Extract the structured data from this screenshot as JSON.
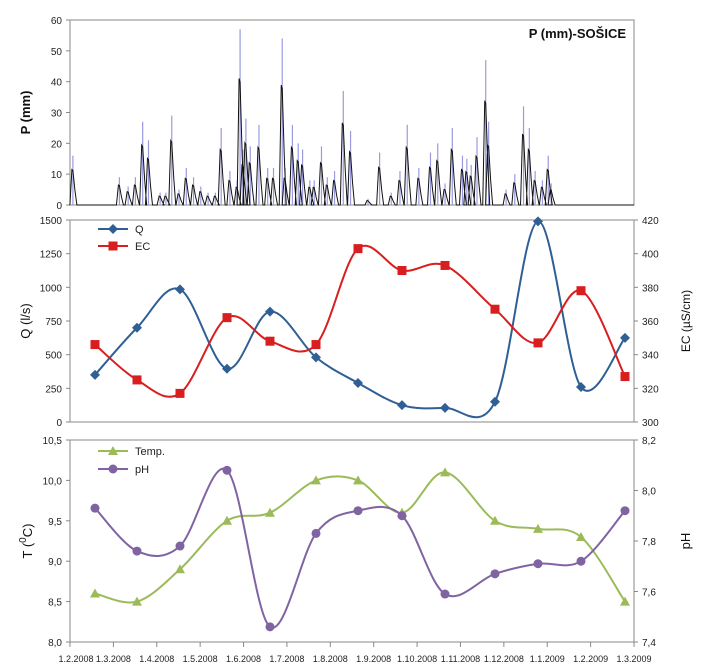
{
  "chart_data": [
    {
      "type": "bar",
      "panel": "precipitation",
      "title": "P (mm)-SOŠICE",
      "ylabel": "P (mm)",
      "ylim": [
        0,
        60
      ],
      "yticks": [
        "0",
        "10",
        "20",
        "30",
        "40",
        "50",
        "60"
      ],
      "grid": false,
      "colors": {
        "bars": "#9a9ae0",
        "line": "#111111"
      },
      "events": [
        [
          2,
          16
        ],
        [
          34,
          9
        ],
        [
          40,
          6
        ],
        [
          45,
          9
        ],
        [
          50,
          27
        ],
        [
          54,
          21
        ],
        [
          62,
          4
        ],
        [
          66,
          4
        ],
        [
          70,
          29
        ],
        [
          75,
          5
        ],
        [
          80,
          12
        ],
        [
          85,
          9
        ],
        [
          90,
          6
        ],
        [
          95,
          4
        ],
        [
          100,
          4
        ],
        [
          104,
          25
        ],
        [
          110,
          11
        ],
        [
          115,
          8
        ],
        [
          117,
          57
        ],
        [
          119,
          18
        ],
        [
          121,
          28
        ],
        [
          124,
          19
        ],
        [
          130,
          26
        ],
        [
          136,
          12
        ],
        [
          140,
          12
        ],
        [
          146,
          54
        ],
        [
          148,
          12
        ],
        [
          153,
          26
        ],
        [
          157,
          20
        ],
        [
          160,
          18
        ],
        [
          165,
          8
        ],
        [
          168,
          8
        ],
        [
          173,
          19
        ],
        [
          177,
          9
        ],
        [
          182,
          11
        ],
        [
          188,
          37
        ],
        [
          193,
          24
        ],
        [
          205,
          2
        ],
        [
          213,
          17
        ],
        [
          221,
          4
        ],
        [
          227,
          11
        ],
        [
          232,
          26
        ],
        [
          240,
          12
        ],
        [
          248,
          17
        ],
        [
          253,
          20
        ],
        [
          258,
          7
        ],
        [
          263,
          25
        ],
        [
          270,
          16
        ],
        [
          273,
          15
        ],
        [
          276,
          13
        ],
        [
          280,
          22
        ],
        [
          286,
          47
        ],
        [
          288,
          27
        ],
        [
          300,
          5
        ],
        [
          306,
          10
        ],
        [
          312,
          32
        ],
        [
          316,
          25
        ],
        [
          320,
          11
        ],
        [
          325,
          8
        ],
        [
          329,
          16
        ],
        [
          331,
          7
        ]
      ]
    },
    {
      "type": "line",
      "panel": "discharge-conductivity",
      "x_dates": [
        "7.2.2008",
        "7.3.2008",
        "7.4.2008",
        "6.5.2008",
        "5.6.2008",
        "5.7.2008",
        "4.8.2008",
        "3.9.2008",
        "3.10.2008",
        "1.11.2008",
        "1.12.2008",
        "31.12.2008",
        "24.1.2009",
        "25.2.2009"
      ],
      "series": [
        {
          "name": "Q",
          "axis": "left",
          "color": "#2f5f94",
          "marker": "diamond",
          "values": [
            350,
            700,
            985,
            395,
            820,
            480,
            290,
            125,
            105,
            150,
            1490,
            260,
            625
          ]
        },
        {
          "name": "EC",
          "axis": "right",
          "color": "#d81e1e",
          "marker": "square",
          "values": [
            346,
            325,
            317,
            362,
            348,
            346,
            403,
            390,
            393,
            367,
            347,
            378,
            327
          ]
        }
      ],
      "x_index_q": [
        0,
        1,
        2,
        3,
        4,
        5,
        6,
        7,
        8,
        9,
        10,
        11,
        13
      ],
      "x_index_ec": [
        0,
        1,
        2,
        3,
        4,
        5,
        6,
        7,
        8,
        9,
        10,
        11,
        13
      ],
      "ylabel_left": "Q (l/s)",
      "ylabel_right": "EC (µS/cm)",
      "ylim_left": [
        0,
        1500
      ],
      "ylim_right": [
        300,
        420
      ],
      "yticks_left": [
        "0",
        "250",
        "500",
        "750",
        "1000",
        "1250",
        "1500"
      ],
      "yticks_right": [
        "300",
        "320",
        "340",
        "360",
        "380",
        "400",
        "420"
      ],
      "legend": "top-left"
    },
    {
      "type": "line",
      "panel": "temperature-ph",
      "series": [
        {
          "name": "Temp.",
          "axis": "left",
          "color": "#9bbb59",
          "marker": "triangle",
          "values": [
            8.6,
            8.5,
            8.9,
            9.5,
            9.6,
            10.0,
            10.0,
            9.6,
            10.1,
            9.5,
            9.4,
            9.3,
            8.5
          ]
        },
        {
          "name": "pH",
          "axis": "right",
          "color": "#8064a2",
          "marker": "circle",
          "values": [
            7.93,
            7.76,
            7.78,
            8.08,
            7.46,
            7.83,
            7.92,
            7.9,
            7.59,
            7.67,
            7.71,
            7.72,
            7.92
          ]
        }
      ],
      "ylabel_left": "T (°C)",
      "ylabel_right": "pH",
      "ylim_left": [
        8.0,
        10.5
      ],
      "ylim_right": [
        7.4,
        8.2
      ],
      "yticks_left": [
        "8,0",
        "8,5",
        "9,0",
        "9,5",
        "10,0",
        "10,5"
      ],
      "yticks_right": [
        "7,4",
        "7,6",
        "7,8",
        "8,0",
        "8,2"
      ],
      "legend": "top-left"
    }
  ],
  "labels": {
    "p_title": "P (mm)-SOŠICE",
    "p_ylabel": "P (mm)",
    "q_ylabel": "Q (l/s)",
    "ec_ylabel": "EC (µS/cm)",
    "t_ylabel_main": "T (",
    "t_ylabel_sup": "0",
    "t_ylabel_end": "C)",
    "ph_ylabel": "pH",
    "legend_q": "Q",
    "legend_ec": "EC",
    "legend_temp": "Temp.",
    "legend_ph": "pH"
  },
  "x_axis": {
    "ticks": [
      "1.2.2008",
      "1.3.2008",
      "1.4.2008",
      "1.5.2008",
      "1.6.2008",
      "1.7.2008",
      "1.8.2008",
      "1.9.2008",
      "1.10.2008",
      "1.11.2008",
      "1.12.2008",
      "1.1.2009",
      "1.2.2009",
      "1.3.2009"
    ]
  }
}
